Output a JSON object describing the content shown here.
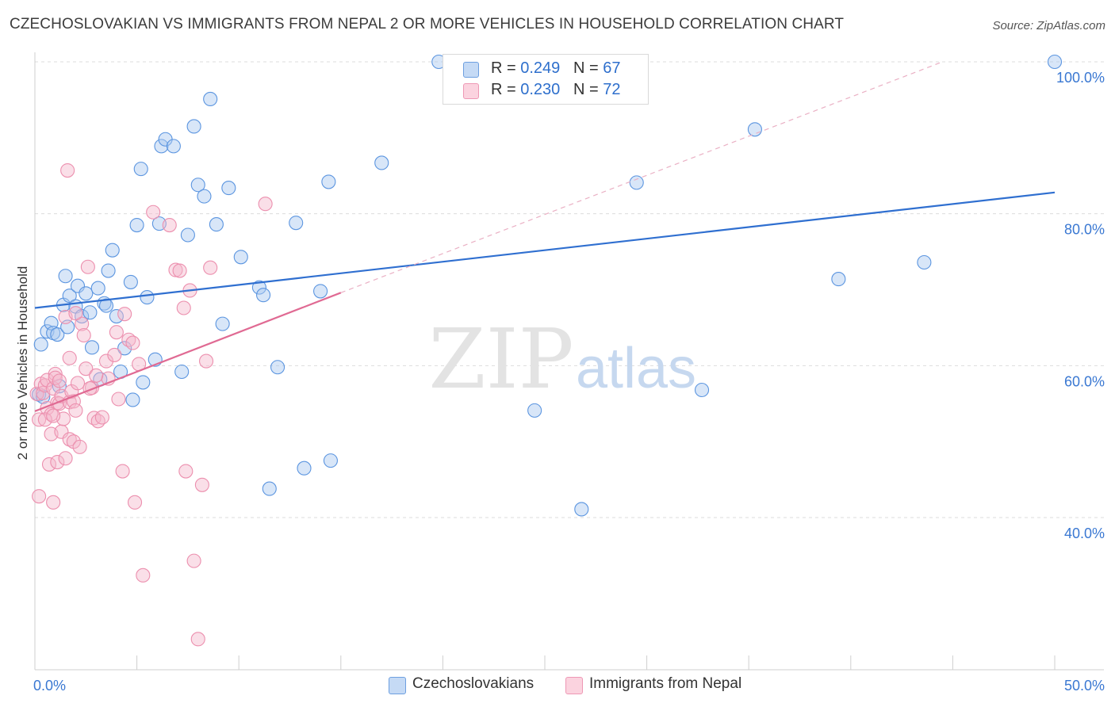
{
  "title": "CZECHOSLOVAKIAN VS IMMIGRANTS FROM NEPAL 2 OR MORE VEHICLES IN HOUSEHOLD CORRELATION CHART",
  "source": "Source: ZipAtlas.com",
  "watermark": {
    "zip": "ZIP",
    "atlas": "atlas"
  },
  "legend": [
    {
      "r_label": "R =",
      "r_value": "0.249",
      "n_label": "N =",
      "n_value": "67",
      "color": "#a9c8f0"
    },
    {
      "r_label": "R =",
      "r_value": "0.230",
      "n_label": "N =",
      "n_value": "72",
      "color": "#f5b8cb"
    }
  ],
  "chart_data": {
    "type": "scatter",
    "title": "CZECHOSLOVAKIAN VS IMMIGRANTS FROM NEPAL 2 OR MORE VEHICLES IN HOUSEHOLD CORRELATION CHART",
    "xlabel": "",
    "ylabel": "2 or more Vehicles in Household",
    "xlim": [
      0,
      50
    ],
    "ylim": [
      20,
      100
    ],
    "x_tick_labels": [
      "0.0%",
      "50.0%"
    ],
    "y_ticks": [
      40,
      60,
      80,
      100
    ],
    "y_tick_labels": [
      "40.0%",
      "60.0%",
      "80.0%",
      "100.0%"
    ],
    "grid": true,
    "legend_position": "top-center",
    "series": [
      {
        "name": "Czechoslovakians",
        "color": "#5b95e0",
        "fill": "#a9c8f0",
        "trend": {
          "x": [
            0,
            50
          ],
          "y": [
            67.6,
            82.8
          ],
          "color": "#2f6fd0"
        },
        "points": [
          [
            0.3,
            62.8
          ],
          [
            0.6,
            64.5
          ],
          [
            0.8,
            65.6
          ],
          [
            0.9,
            64.3
          ],
          [
            1.1,
            64.1
          ],
          [
            1.2,
            57.3
          ],
          [
            1.4,
            68.0
          ],
          [
            1.5,
            71.8
          ],
          [
            1.6,
            65.1
          ],
          [
            1.7,
            69.2
          ],
          [
            2.0,
            67.8
          ],
          [
            2.1,
            70.5
          ],
          [
            2.3,
            66.5
          ],
          [
            2.5,
            69.5
          ],
          [
            2.7,
            67.0
          ],
          [
            2.8,
            62.4
          ],
          [
            3.1,
            70.2
          ],
          [
            3.2,
            58.2
          ],
          [
            3.4,
            68.2
          ],
          [
            3.5,
            67.9
          ],
          [
            3.6,
            72.5
          ],
          [
            3.8,
            75.2
          ],
          [
            4.0,
            66.5
          ],
          [
            4.2,
            59.2
          ],
          [
            4.4,
            62.3
          ],
          [
            4.7,
            71.0
          ],
          [
            4.8,
            55.5
          ],
          [
            5.0,
            78.5
          ],
          [
            5.2,
            85.9
          ],
          [
            5.3,
            57.8
          ],
          [
            5.5,
            69.0
          ],
          [
            5.9,
            60.8
          ],
          [
            6.1,
            78.7
          ],
          [
            6.2,
            88.9
          ],
          [
            6.4,
            89.8
          ],
          [
            6.8,
            88.9
          ],
          [
            7.2,
            59.2
          ],
          [
            7.5,
            77.2
          ],
          [
            7.8,
            91.5
          ],
          [
            8.0,
            83.8
          ],
          [
            8.3,
            82.3
          ],
          [
            8.6,
            95.1
          ],
          [
            8.9,
            78.6
          ],
          [
            9.2,
            65.5
          ],
          [
            9.5,
            83.4
          ],
          [
            10.1,
            74.3
          ],
          [
            11.0,
            70.3
          ],
          [
            11.2,
            69.3
          ],
          [
            11.5,
            43.8
          ],
          [
            11.9,
            59.8
          ],
          [
            12.8,
            78.8
          ],
          [
            13.2,
            46.5
          ],
          [
            14.0,
            69.8
          ],
          [
            14.4,
            84.2
          ],
          [
            14.5,
            47.5
          ],
          [
            17.0,
            86.7
          ],
          [
            19.8,
            100.0
          ],
          [
            24.5,
            54.1
          ],
          [
            26.8,
            41.1
          ],
          [
            29.5,
            84.1
          ],
          [
            32.7,
            56.8
          ],
          [
            35.3,
            91.1
          ],
          [
            39.4,
            71.4
          ],
          [
            43.6,
            73.6
          ],
          [
            50.0,
            100.0
          ],
          [
            0.2,
            56.2
          ],
          [
            0.4,
            55.9
          ]
        ]
      },
      {
        "name": "Immigrants from Nepal",
        "color": "#ec8fae",
        "fill": "#f5b8cb",
        "trend": {
          "x": [
            0,
            15
          ],
          "y": [
            54.0,
            69.6
          ],
          "color": "#e06a93"
        },
        "trend_extension": {
          "x": [
            15,
            44.5
          ],
          "y": [
            69.6,
            100.0
          ]
        },
        "points": [
          [
            0.1,
            56.3
          ],
          [
            0.2,
            52.9
          ],
          [
            0.2,
            42.8
          ],
          [
            0.3,
            57.6
          ],
          [
            0.4,
            56.4
          ],
          [
            0.5,
            57.4
          ],
          [
            0.6,
            58.1
          ],
          [
            0.6,
            54.4
          ],
          [
            0.7,
            47.0
          ],
          [
            0.8,
            53.6
          ],
          [
            0.8,
            51.0
          ],
          [
            0.9,
            57.0
          ],
          [
            0.9,
            42.0
          ],
          [
            1.0,
            58.9
          ],
          [
            1.0,
            58.4
          ],
          [
            1.1,
            55.1
          ],
          [
            1.1,
            47.3
          ],
          [
            1.2,
            55.0
          ],
          [
            1.3,
            51.3
          ],
          [
            1.3,
            56.0
          ],
          [
            1.4,
            53.0
          ],
          [
            1.5,
            47.8
          ],
          [
            1.5,
            66.4
          ],
          [
            1.6,
            85.7
          ],
          [
            1.7,
            61.0
          ],
          [
            1.7,
            55.2
          ],
          [
            1.7,
            50.3
          ],
          [
            1.8,
            56.6
          ],
          [
            1.9,
            55.3
          ],
          [
            1.9,
            50.0
          ],
          [
            2.0,
            54.1
          ],
          [
            2.1,
            57.7
          ],
          [
            2.2,
            49.3
          ],
          [
            2.3,
            65.5
          ],
          [
            2.4,
            64.0
          ],
          [
            2.5,
            59.6
          ],
          [
            2.6,
            73.0
          ],
          [
            2.8,
            57.1
          ],
          [
            2.9,
            53.1
          ],
          [
            3.1,
            52.7
          ],
          [
            3.3,
            53.2
          ],
          [
            3.5,
            60.6
          ],
          [
            3.6,
            58.3
          ],
          [
            3.9,
            61.4
          ],
          [
            4.0,
            64.4
          ],
          [
            4.1,
            55.6
          ],
          [
            4.3,
            46.1
          ],
          [
            4.4,
            66.8
          ],
          [
            4.6,
            63.4
          ],
          [
            4.8,
            63.0
          ],
          [
            4.9,
            42.0
          ],
          [
            5.1,
            60.2
          ],
          [
            5.3,
            32.4
          ],
          [
            5.8,
            80.2
          ],
          [
            6.6,
            78.5
          ],
          [
            6.9,
            72.6
          ],
          [
            7.1,
            72.5
          ],
          [
            7.3,
            67.6
          ],
          [
            7.4,
            46.1
          ],
          [
            7.6,
            69.9
          ],
          [
            7.8,
            34.3
          ],
          [
            8.0,
            24.0
          ],
          [
            8.2,
            44.3
          ],
          [
            8.4,
            60.6
          ],
          [
            8.6,
            72.9
          ],
          [
            11.3,
            81.3
          ],
          [
            2.0,
            66.9
          ],
          [
            1.2,
            58.0
          ],
          [
            2.7,
            57.0
          ],
          [
            3.0,
            58.7
          ],
          [
            0.5,
            52.9
          ],
          [
            0.9,
            53.4
          ]
        ]
      }
    ]
  }
}
